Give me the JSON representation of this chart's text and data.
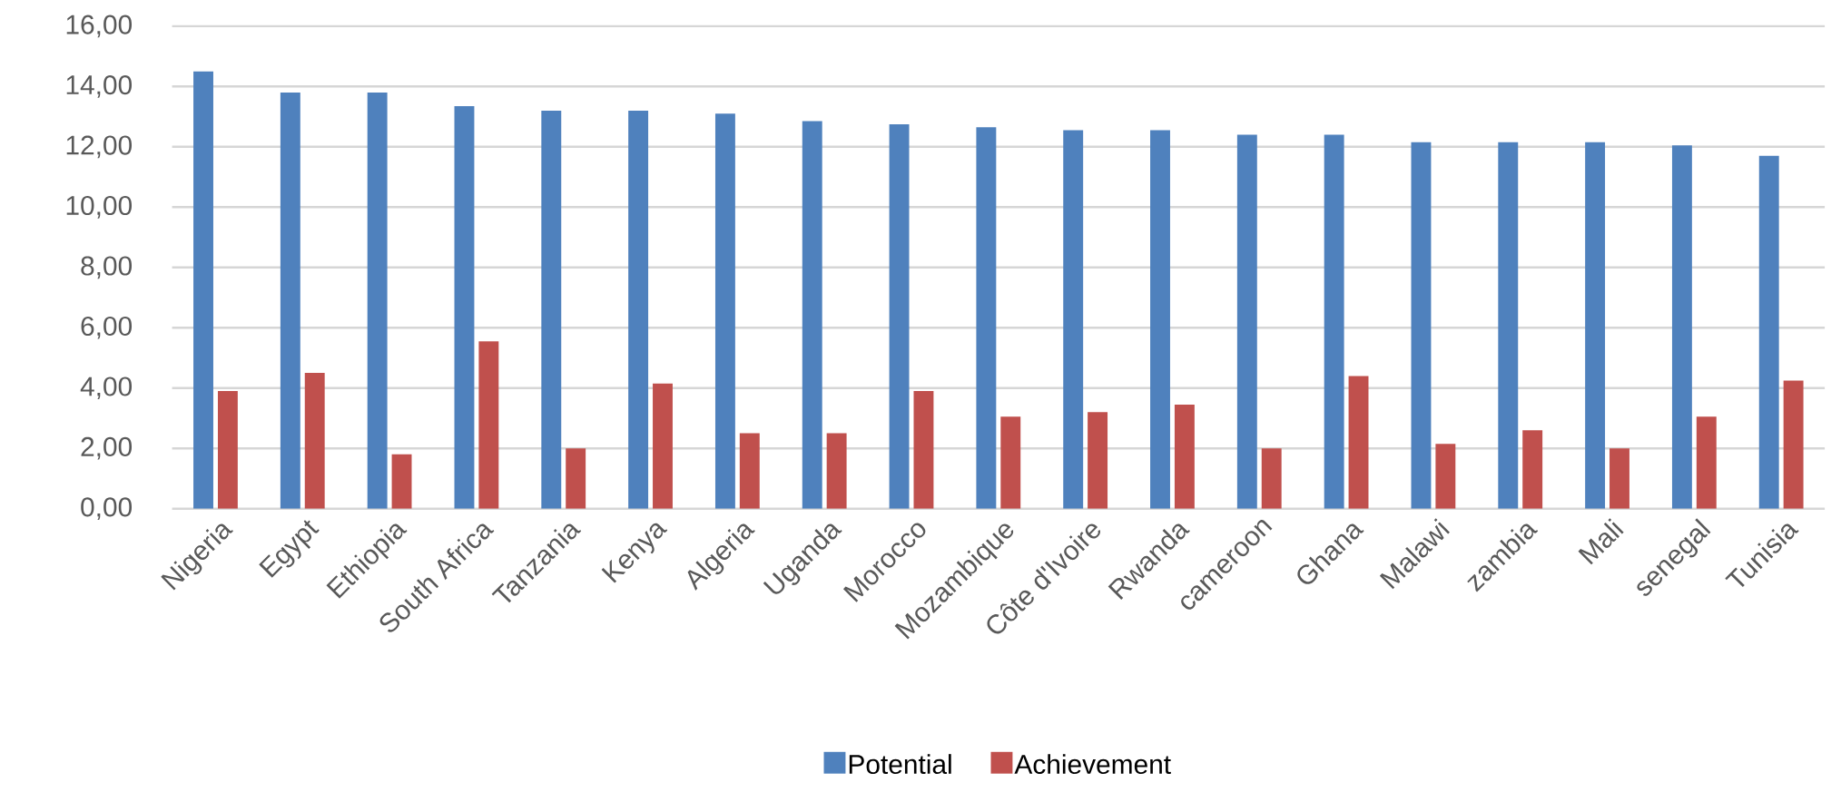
{
  "chart_data": {
    "type": "bar",
    "categories": [
      "Nigeria",
      "Egypt",
      "Ethiopia",
      "South Africa",
      "Tanzania",
      "Kenya",
      "Algeria",
      "Uganda",
      "Morocco",
      "Mozambique",
      "Côte d'Ivoire",
      "Rwanda",
      "cameroon",
      "Ghana",
      "Malawi",
      "zambia",
      "Mali",
      "senegal",
      "Tunisia"
    ],
    "series": [
      {
        "name": "Potential",
        "color": "#4f81bd",
        "values": [
          14.5,
          13.8,
          13.8,
          13.35,
          13.2,
          13.2,
          13.1,
          12.85,
          12.75,
          12.65,
          12.55,
          12.55,
          12.4,
          12.4,
          12.15,
          12.15,
          12.15,
          12.05,
          11.7
        ]
      },
      {
        "name": "Achievement",
        "color": "#c0504d",
        "values": [
          3.9,
          4.5,
          1.8,
          5.55,
          2.0,
          4.15,
          2.5,
          2.5,
          3.9,
          3.05,
          3.2,
          3.45,
          2.0,
          4.4,
          2.15,
          2.6,
          2.0,
          3.05,
          4.25
        ]
      }
    ],
    "ylim": [
      0,
      16
    ],
    "yticks": [
      {
        "value": 0,
        "label": "0,00"
      },
      {
        "value": 2,
        "label": "2,00"
      },
      {
        "value": 4,
        "label": "4,00"
      },
      {
        "value": 6,
        "label": "6,00"
      },
      {
        "value": 8,
        "label": "8,00"
      },
      {
        "value": 10,
        "label": "10,00"
      },
      {
        "value": 12,
        "label": "12,00"
      },
      {
        "value": 14,
        "label": "14,00"
      },
      {
        "value": 16,
        "label": "16,00"
      }
    ],
    "grid": "y",
    "legend": "bottom"
  }
}
